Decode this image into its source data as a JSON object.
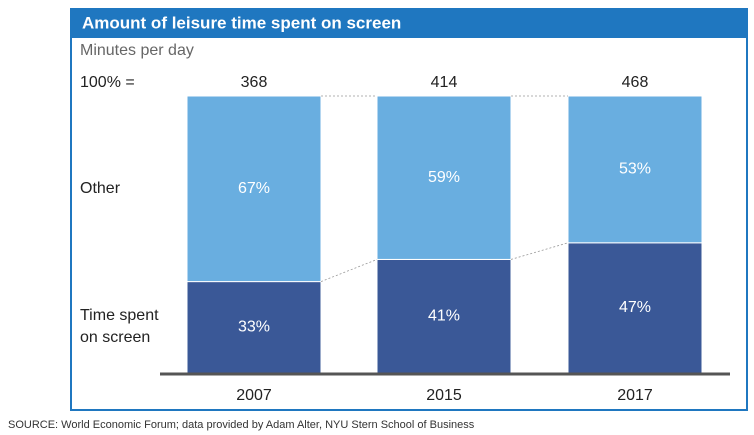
{
  "chart_data": {
    "type": "stacked_bar_100",
    "title": "Amount of leisure time spent on screen",
    "subtitle": "Minutes per day",
    "totals_label": "100% =",
    "totals": [
      368,
      414,
      468
    ],
    "categories": [
      "2007",
      "2015",
      "2017"
    ],
    "series": [
      {
        "name": "Time spent on screen",
        "color": "#3a5897",
        "values": [
          33,
          41,
          47
        ],
        "value_labels": [
          "33%",
          "41%",
          "47%"
        ]
      },
      {
        "name": "Other",
        "color": "#69aee0",
        "values": [
          67,
          59,
          53
        ],
        "value_labels": [
          "67%",
          "59%",
          "53%"
        ]
      }
    ],
    "source": "SOURCE: World Economic Forum; data provided by Adam Alter, NYU Stern School of Business"
  }
}
